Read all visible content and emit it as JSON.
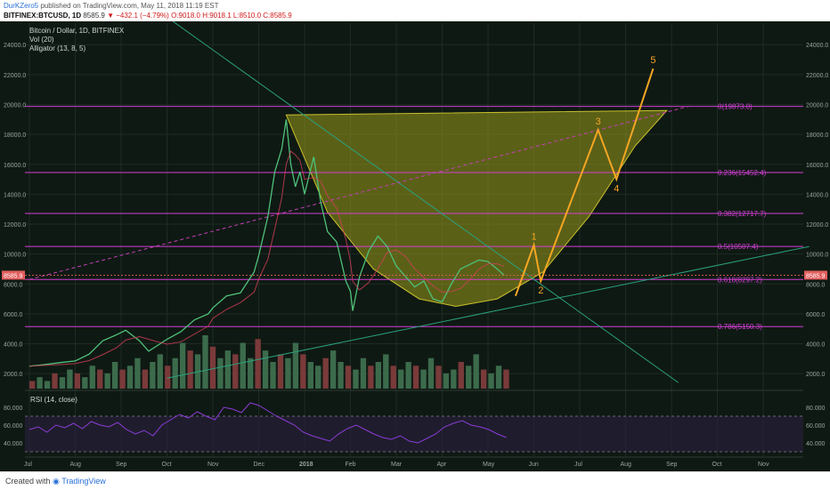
{
  "header": {
    "author": "DurKZero5",
    "published": "published on TradingView.com, May 11, 2018 11:19 EST",
    "symbol": "BITFINEX:BTCUSD, 1D",
    "last": "8585.9",
    "change": "−432.1 (−4.79%)",
    "ohlc": "O:9018.0 H:9018.1 L:8510.0 C:8585.9"
  },
  "legend": {
    "title": "Bitcoin / Dollar, 1D, BITFINEX",
    "vol": "Vol (20)",
    "alligator": "Alligator (13, 8, 5)"
  },
  "rsi_label": "RSI (14, close)",
  "footer": {
    "created": "Created with",
    "brand": "TradingView"
  },
  "price_tag": "8585.9",
  "colors": {
    "background": "#0f1913",
    "fib": "#d23fd6",
    "elliott": "#f5a623",
    "cup_fill": "#9b9a1c",
    "trend": "#2aa17f",
    "rsi_line": "#8b3bd6",
    "price_tag": "#e35e5e"
  },
  "chart_data": {
    "type": "line",
    "title": "Bitcoin / Dollar, 1D, BITFINEX",
    "x_ticks": [
      "Jul",
      "Aug",
      "Sep",
      "Oct",
      "Nov",
      "Dec",
      "2018",
      "Feb",
      "Mar",
      "Apr",
      "May",
      "Jun",
      "Jul",
      "Aug",
      "Sep",
      "Oct",
      "Nov"
    ],
    "y_ticks": [
      2000.0,
      4000.0,
      6000.0,
      8000.0,
      10000.0,
      12000.0,
      14000.0,
      16000.0,
      18000.0,
      20000.0,
      22000.0,
      24000.0
    ],
    "ylim": [
      1000,
      25500
    ],
    "rsi_ticks": [
      40.0,
      60.0,
      80.0
    ],
    "rsi_ylim": [
      25,
      95
    ],
    "price_series": [
      {
        "t": 0,
        "v": 2500
      },
      {
        "t": 0.3,
        "v": 2600
      },
      {
        "t": 0.7,
        "v": 2750
      },
      {
        "t": 1,
        "v": 2850
      },
      {
        "t": 1.3,
        "v": 3300
      },
      {
        "t": 1.6,
        "v": 4200
      },
      {
        "t": 1.9,
        "v": 4600
      },
      {
        "t": 2.1,
        "v": 4900
      },
      {
        "t": 2.4,
        "v": 4200
      },
      {
        "t": 2.6,
        "v": 3500
      },
      {
        "t": 2.8,
        "v": 3900
      },
      {
        "t": 3,
        "v": 4300
      },
      {
        "t": 3.3,
        "v": 4800
      },
      {
        "t": 3.6,
        "v": 5600
      },
      {
        "t": 3.9,
        "v": 6000
      },
      {
        "t": 4,
        "v": 6400
      },
      {
        "t": 4.3,
        "v": 7200
      },
      {
        "t": 4.6,
        "v": 7400
      },
      {
        "t": 4.9,
        "v": 8800
      },
      {
        "t": 5,
        "v": 9900
      },
      {
        "t": 5.2,
        "v": 12500
      },
      {
        "t": 5.35,
        "v": 15500
      },
      {
        "t": 5.5,
        "v": 17000
      },
      {
        "t": 5.6,
        "v": 19000
      },
      {
        "t": 5.7,
        "v": 16000
      },
      {
        "t": 5.8,
        "v": 14500
      },
      {
        "t": 5.9,
        "v": 15500
      },
      {
        "t": 6,
        "v": 14000
      },
      {
        "t": 6.2,
        "v": 16500
      },
      {
        "t": 6.35,
        "v": 13500
      },
      {
        "t": 6.5,
        "v": 11500
      },
      {
        "t": 6.7,
        "v": 10800
      },
      {
        "t": 6.9,
        "v": 8200
      },
      {
        "t": 7,
        "v": 7500
      },
      {
        "t": 7.05,
        "v": 6200
      },
      {
        "t": 7.2,
        "v": 8500
      },
      {
        "t": 7.4,
        "v": 10200
      },
      {
        "t": 7.6,
        "v": 11200
      },
      {
        "t": 7.8,
        "v": 10500
      },
      {
        "t": 8,
        "v": 9200
      },
      {
        "t": 8.2,
        "v": 8500
      },
      {
        "t": 8.4,
        "v": 7800
      },
      {
        "t": 8.6,
        "v": 8200
      },
      {
        "t": 8.8,
        "v": 7000
      },
      {
        "t": 9,
        "v": 6800
      },
      {
        "t": 9.2,
        "v": 8000
      },
      {
        "t": 9.4,
        "v": 9000
      },
      {
        "t": 9.6,
        "v": 9300
      },
      {
        "t": 9.8,
        "v": 9600
      },
      {
        "t": 10,
        "v": 9500
      },
      {
        "t": 10.2,
        "v": 9000
      },
      {
        "t": 10.35,
        "v": 8585.9
      }
    ],
    "volume_series": [
      2,
      3,
      2,
      4,
      3,
      5,
      4,
      3,
      6,
      5,
      4,
      7,
      5,
      6,
      8,
      5,
      7,
      9,
      6,
      8,
      12,
      10,
      9,
      14,
      11,
      8,
      10,
      9,
      12,
      8,
      13,
      10,
      7,
      9,
      8,
      12,
      9,
      7,
      6,
      8,
      10,
      7,
      6,
      5,
      8,
      6,
      7,
      9,
      6,
      5,
      7,
      6,
      5,
      8,
      6,
      4,
      5,
      7,
      6,
      9,
      5,
      4,
      6,
      5
    ],
    "rsi_series": [
      55,
      58,
      52,
      60,
      57,
      62,
      56,
      64,
      60,
      58,
      63,
      55,
      50,
      54,
      48,
      60,
      66,
      72,
      68,
      75,
      70,
      66,
      80,
      78,
      74,
      85,
      82,
      76,
      70,
      65,
      60,
      52,
      48,
      45,
      42,
      50,
      56,
      60,
      55,
      50,
      46,
      44,
      48,
      42,
      40,
      45,
      50,
      58,
      62,
      65,
      60,
      58,
      55,
      50,
      46
    ],
    "fib_levels": [
      {
        "label": "0(19873.0)",
        "value": 19873.0
      },
      {
        "label": "0.236(15452.4)",
        "value": 15452.4
      },
      {
        "label": "0.382(12717.7)",
        "value": 12717.7
      },
      {
        "label": "0.5(10507.4)",
        "value": 10507.4
      },
      {
        "label": "0.618(8297.2)",
        "value": 8297.2
      },
      {
        "label": "0.786(5150.3)",
        "value": 5150.3
      }
    ],
    "elliott_wave": [
      {
        "label": "",
        "t": 10.6,
        "v": 7200
      },
      {
        "label": "1",
        "t": 11.0,
        "v": 10600
      },
      {
        "label": "2",
        "t": 11.15,
        "v": 8200
      },
      {
        "label": "3",
        "t": 12.4,
        "v": 18300
      },
      {
        "label": "4",
        "t": 12.8,
        "v": 15000
      },
      {
        "label": "5",
        "t": 13.6,
        "v": 22400
      }
    ],
    "cup_outline": [
      {
        "t": 5.6,
        "v": 19300
      },
      {
        "t": 6.5,
        "v": 12800
      },
      {
        "t": 7.5,
        "v": 9000
      },
      {
        "t": 8.5,
        "v": 7000
      },
      {
        "t": 9.3,
        "v": 6500
      },
      {
        "t": 10.2,
        "v": 7000
      },
      {
        "t": 11.2,
        "v": 8800
      },
      {
        "t": 12.2,
        "v": 12500
      },
      {
        "t": 13.2,
        "v": 17200
      },
      {
        "t": 13.9,
        "v": 19600
      }
    ],
    "trend_lines": [
      {
        "name": "descending",
        "from": {
          "t": 2.7,
          "v": 26500
        },
        "to": {
          "t": 14.15,
          "v": 1400
        }
      },
      {
        "name": "ascending",
        "from": {
          "t": 3.0,
          "v": 1700
        },
        "to": {
          "t": 17.0,
          "v": 10500
        }
      },
      {
        "name": "dashed",
        "from": {
          "t": 0.0,
          "v": 8300
        },
        "to": {
          "t": 14.4,
          "v": 19900
        }
      }
    ],
    "annotations": [
      "1",
      "2",
      "3",
      "4",
      "5"
    ]
  }
}
